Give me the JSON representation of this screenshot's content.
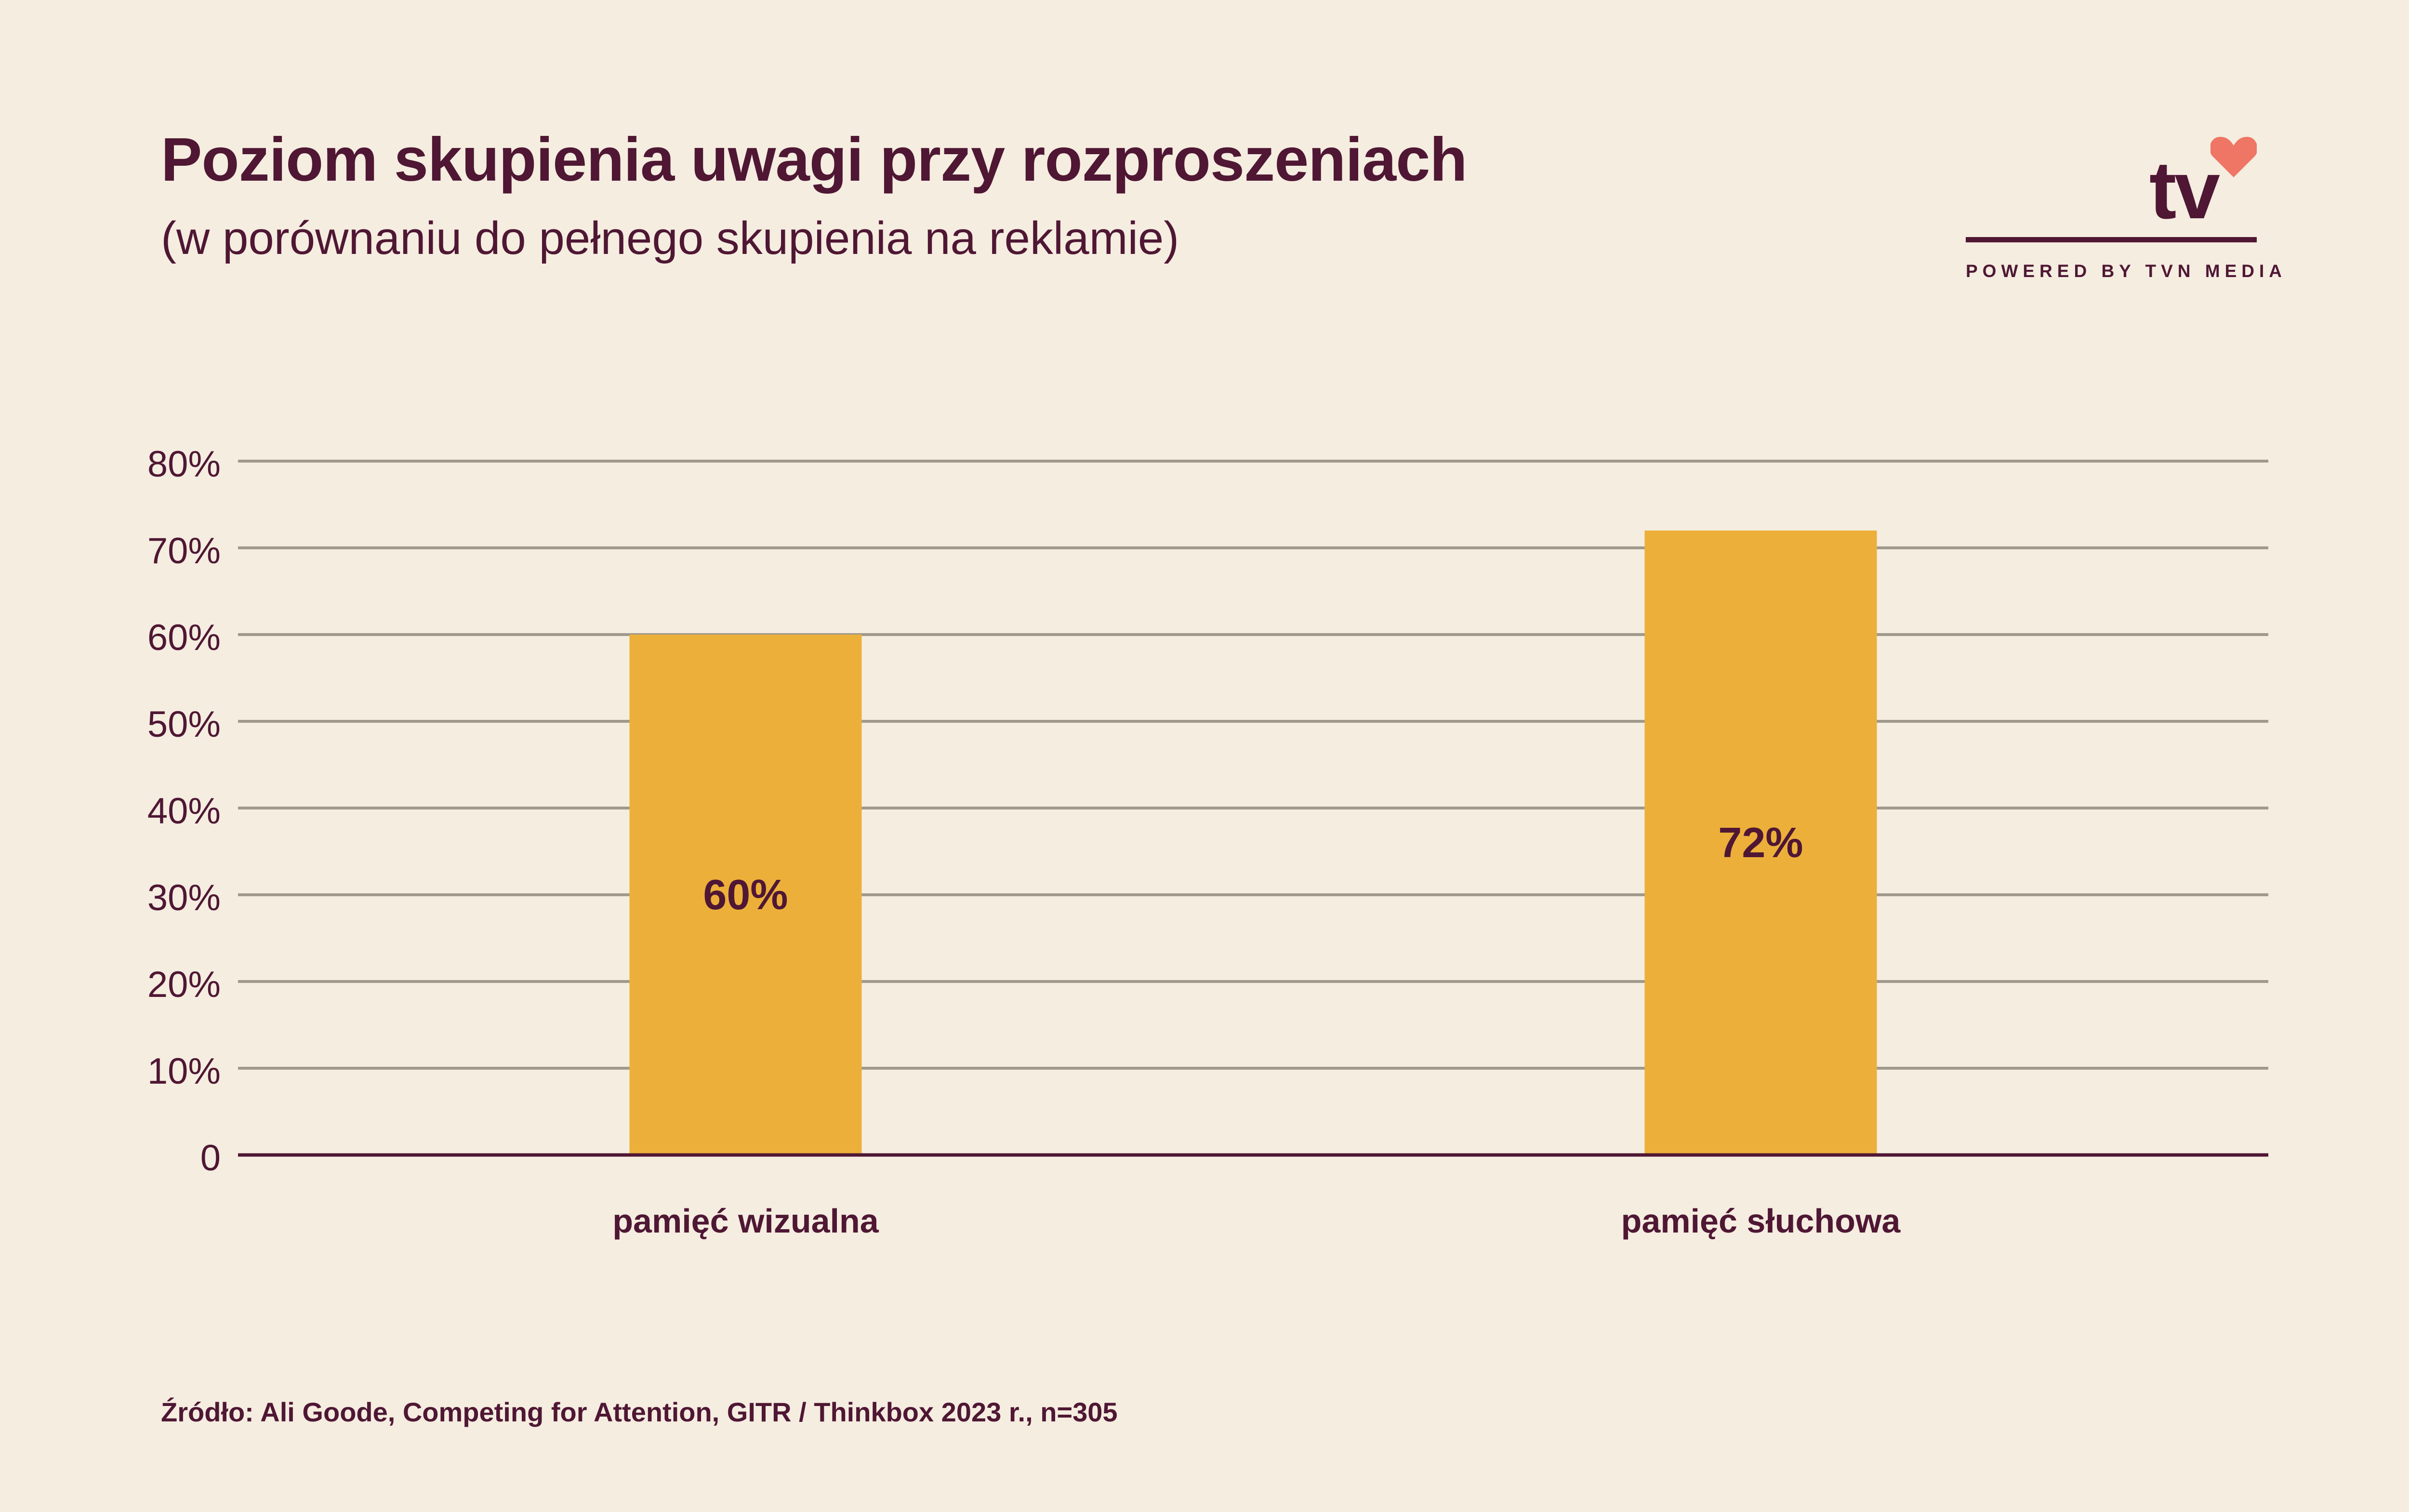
{
  "header": {
    "title": "Poziom skupienia uwagi przy rozproszeniach",
    "subtitle": "(w porównaniu do pełnego skupienia na reklamie)"
  },
  "logo": {
    "mark": "tv",
    "icon": "heart-icon",
    "tagline": "POWERED BY TVN MEDIA"
  },
  "colors": {
    "background": "#f5ede0",
    "bar": "#ecb03a",
    "text": "#4f1734",
    "heart": "#ef7565",
    "grid": "#a09a8c"
  },
  "chart_data": {
    "type": "bar",
    "categories": [
      "pamięć wizualna",
      "pamięć słuchowa"
    ],
    "values": [
      60,
      72
    ],
    "value_labels": [
      "60%",
      "72%"
    ],
    "ylim": [
      0,
      80
    ],
    "yticks": [
      0,
      10,
      20,
      30,
      40,
      50,
      60,
      70,
      80
    ],
    "ytick_labels": [
      "0",
      "10%",
      "20%",
      "30%",
      "40%",
      "50%",
      "60%",
      "70%",
      "80%"
    ],
    "grid": true,
    "legend": "none"
  },
  "footer": {
    "source": "Źródło: Ali Goode, Competing for Attention, GITR / Thinkbox 2023 r., n=305"
  }
}
